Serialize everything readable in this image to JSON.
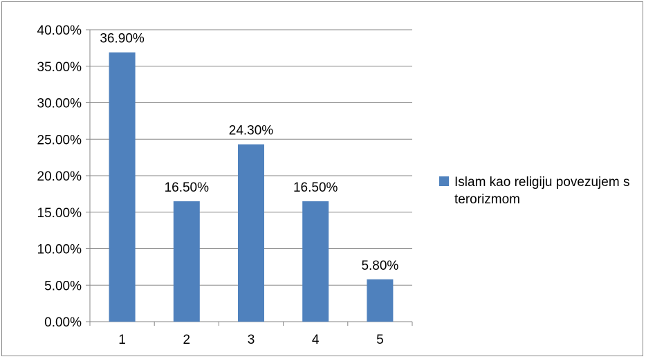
{
  "chart_data": {
    "type": "bar",
    "title": "",
    "xlabel": "",
    "ylabel": "",
    "categories": [
      "1",
      "2",
      "3",
      "4",
      "5"
    ],
    "series": [
      {
        "name": "Islam kao religiju povezujem s terorizmom",
        "values": [
          36.9,
          16.5,
          24.3,
          16.5,
          5.8
        ],
        "data_labels": [
          "36.90%",
          "16.50%",
          "24.30%",
          "16.50%",
          "5.80%"
        ],
        "color": "#4F81BD"
      }
    ],
    "ylim": [
      0,
      40
    ],
    "y_ticks": [
      "0.00%",
      "5.00%",
      "10.00%",
      "15.00%",
      "20.00%",
      "25.00%",
      "30.00%",
      "35.00%",
      "40.00%"
    ],
    "grid": true,
    "legend_position": "right"
  }
}
